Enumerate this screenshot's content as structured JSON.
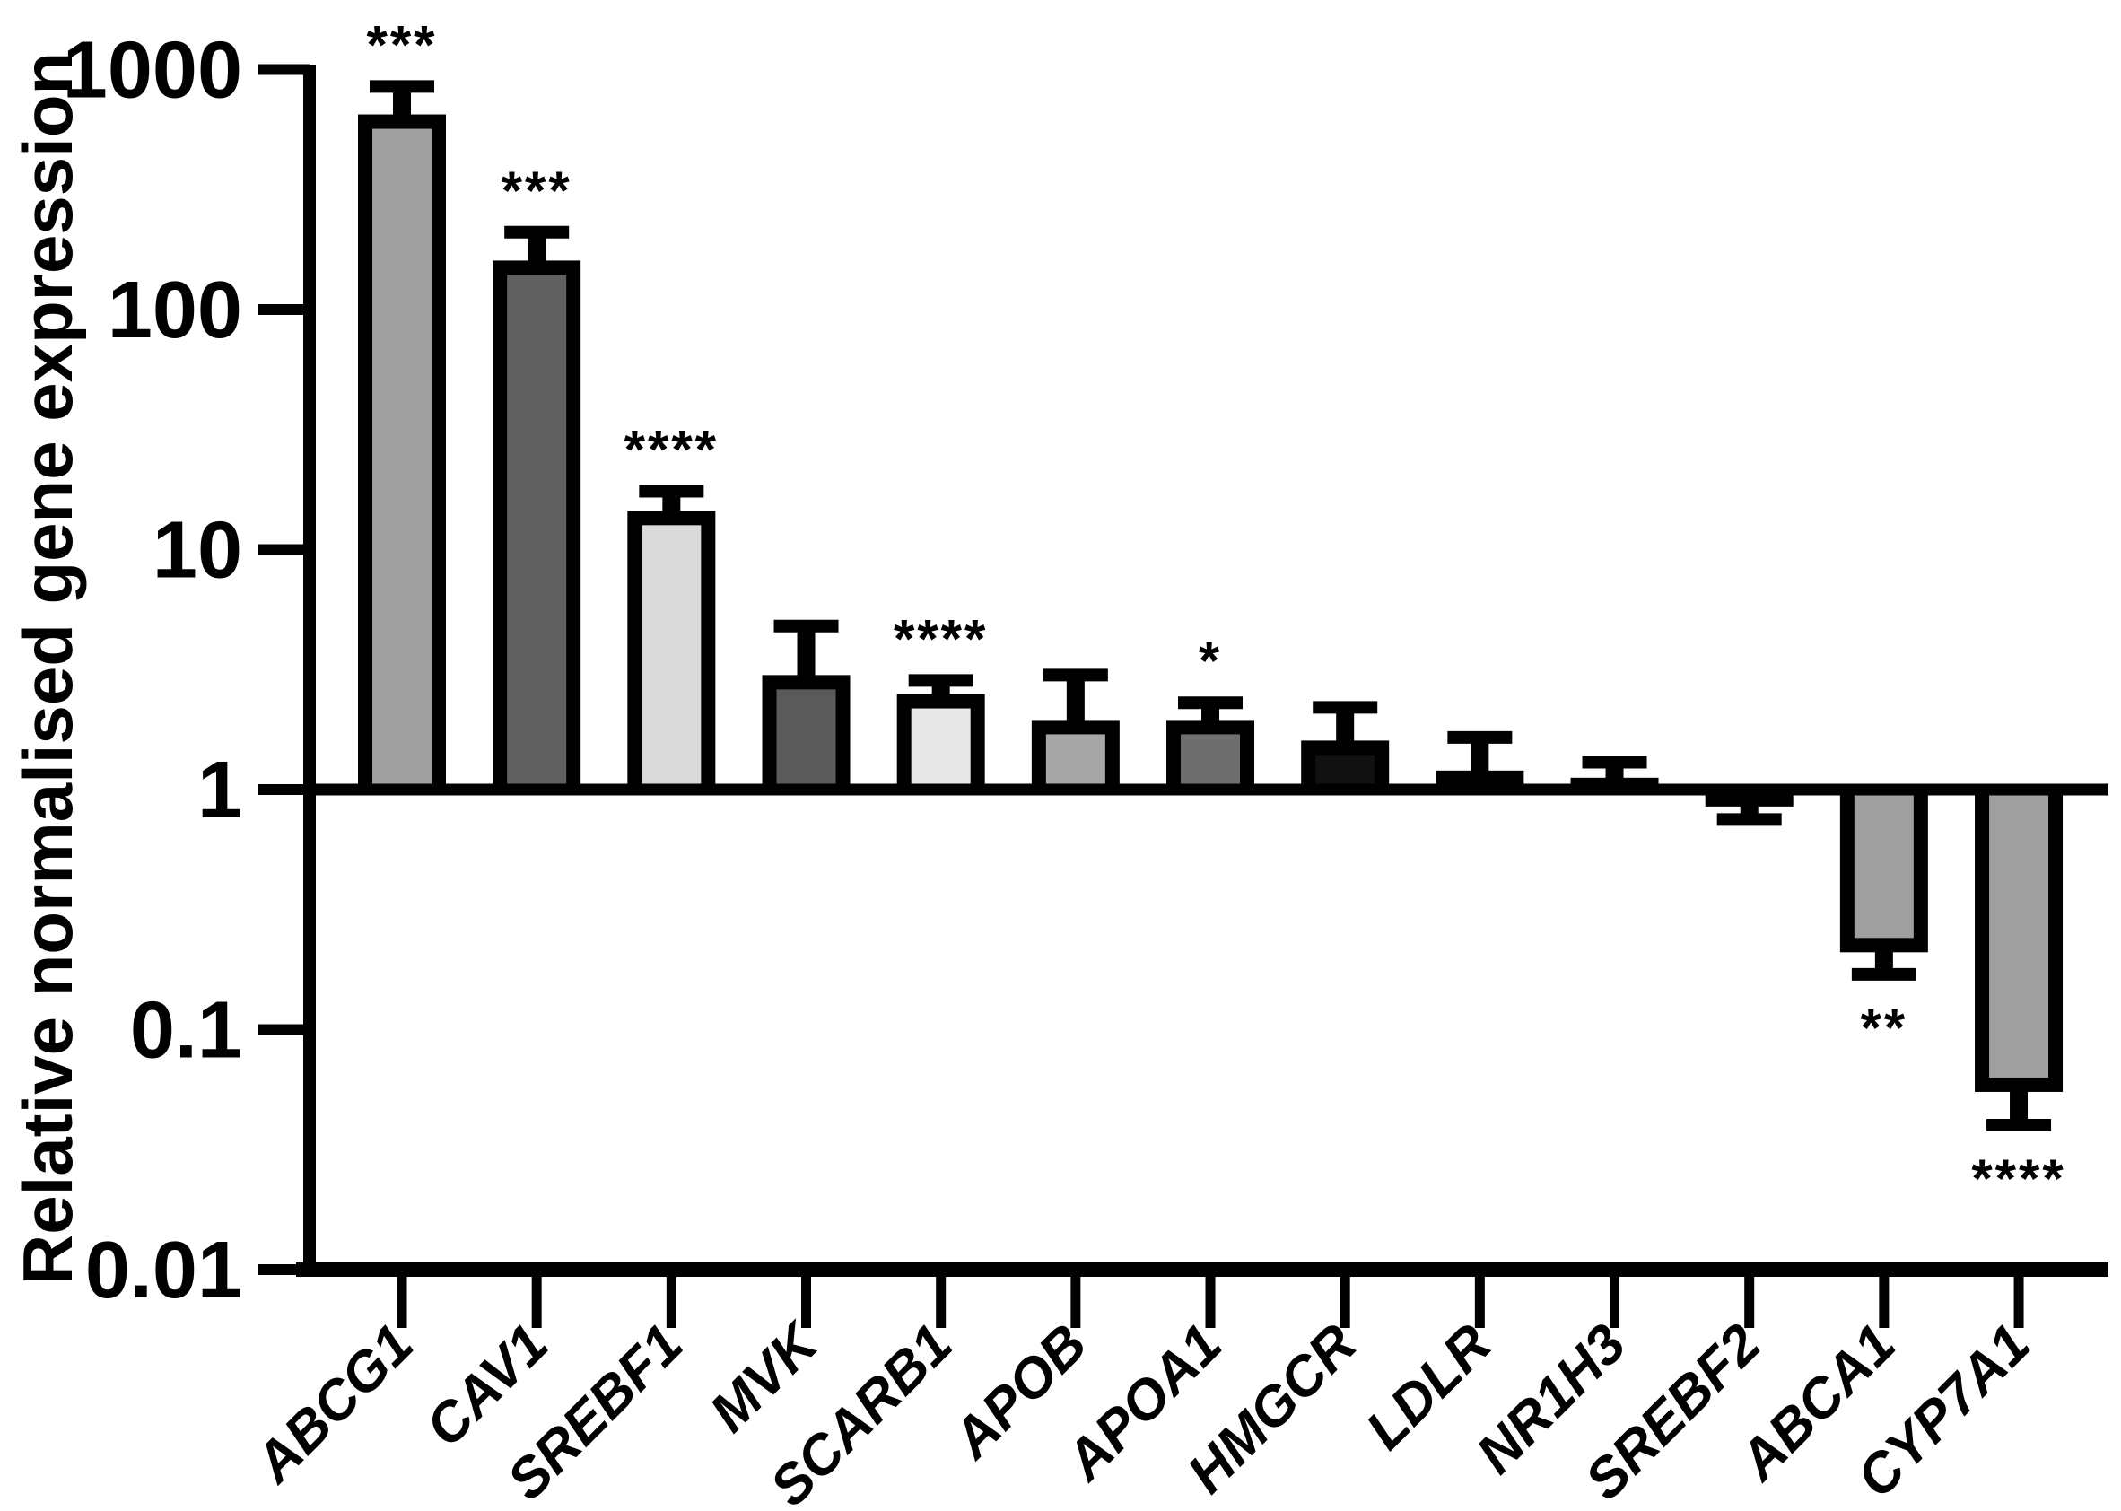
{
  "figure": {
    "background": "#ffffff",
    "axis_color": "#000000",
    "error_bar_color": "#000000",
    "bar_stroke_color": "#000000"
  },
  "chart_data": {
    "type": "bar",
    "title": "",
    "xlabel": "",
    "ylabel": "Relative normalised gene expression",
    "yscale": "log",
    "ylim": [
      0.01,
      1000
    ],
    "baseline": 1,
    "grid": false,
    "legend": "none",
    "yticks": [
      {
        "label": "1000",
        "value": 1000
      },
      {
        "label": "100",
        "value": 100
      },
      {
        "label": "10",
        "value": 10
      },
      {
        "label": "1",
        "value": 1
      },
      {
        "label": "0.1",
        "value": 0.1
      },
      {
        "label": "0.01",
        "value": 0.01
      }
    ],
    "categories": [
      "ABCG1",
      "CAV1",
      "SREBF1",
      "MVK",
      "SCARB1",
      "APOB",
      "APOA1",
      "HMGCR",
      "LDLR",
      "NR1H3",
      "SREBF2",
      "ABCA1",
      "CYP7A1"
    ],
    "bars": [
      {
        "label": "ABCG1",
        "value": 650,
        "error_tip": 850,
        "error_dir": "up",
        "significance": "***",
        "fill": "#9f9f9f"
      },
      {
        "label": "CAV1",
        "value": 160,
        "error_tip": 210,
        "error_dir": "up",
        "significance": "***",
        "fill": "#606060"
      },
      {
        "label": "SREBF1",
        "value": 14.5,
        "error_tip": 17.5,
        "error_dir": "up",
        "significance": "****",
        "fill": "#dadada"
      },
      {
        "label": "MVK",
        "value": 3.0,
        "error_tip": 4.8,
        "error_dir": "up",
        "significance": "",
        "fill": "#5a5a5a"
      },
      {
        "label": "SCARB1",
        "value": 2.5,
        "error_tip": 2.85,
        "error_dir": "up",
        "significance": "****",
        "fill": "#e8e8e8"
      },
      {
        "label": "APOB",
        "value": 1.95,
        "error_tip": 3.0,
        "error_dir": "up",
        "significance": "",
        "fill": "#a6a6a6"
      },
      {
        "label": "APOA1",
        "value": 1.95,
        "error_tip": 2.3,
        "error_dir": "up",
        "significance": "*",
        "fill": "#6e6e6e"
      },
      {
        "label": "HMGCR",
        "value": 1.6,
        "error_tip": 2.2,
        "error_dir": "up",
        "significance": "",
        "fill": "#111111"
      },
      {
        "label": "LDLR",
        "value": 1.2,
        "error_tip": 1.65,
        "error_dir": "up",
        "significance": "",
        "fill": "#111111"
      },
      {
        "label": "NR1H3",
        "value": 1.12,
        "error_tip": 1.3,
        "error_dir": "up",
        "significance": "",
        "fill": "#111111"
      },
      {
        "label": "SREBF2",
        "value": 0.85,
        "error_tip": 0.75,
        "error_dir": "down",
        "significance": "",
        "fill": "#111111"
      },
      {
        "label": "ABCA1",
        "value": 0.21,
        "error_tip": 0.17,
        "error_dir": "down",
        "significance": "**",
        "fill": "#9f9f9f"
      },
      {
        "label": "CYP7A1",
        "value": 0.055,
        "error_tip": 0.04,
        "error_dir": "down",
        "significance": "****",
        "fill": "#9f9f9f"
      }
    ]
  }
}
